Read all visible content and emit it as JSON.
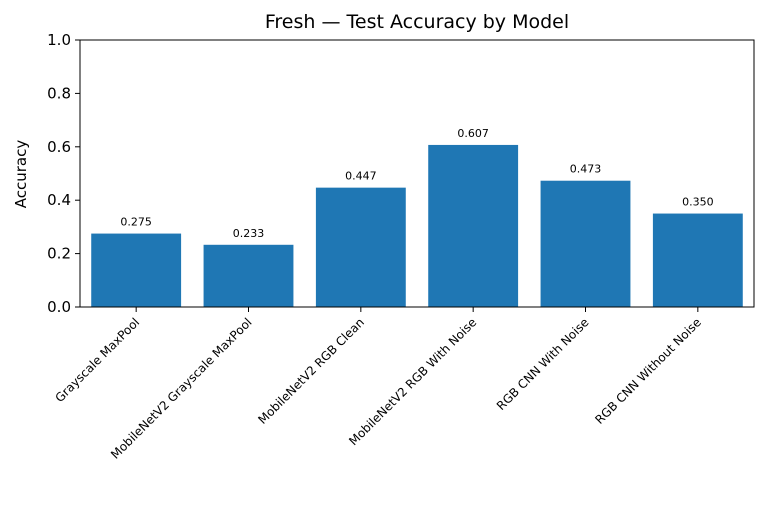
{
  "chart_data": {
    "type": "bar",
    "title": "Fresh — Test Accuracy by Model",
    "xlabel": "",
    "ylabel": "Accuracy",
    "ylim": [
      0,
      1.0
    ],
    "yticks": [
      "0.0",
      "0.2",
      "0.4",
      "0.6",
      "0.8",
      "1.0"
    ],
    "categories": [
      "Grayscale MaxPool",
      "MobileNetV2 Grayscale MaxPool",
      "MobileNetV2 RGB Clean",
      "MobileNetV2 RGB With Noise",
      "RGB CNN With Noise",
      "RGB CNN Without Noise"
    ],
    "values": [
      0.275,
      0.233,
      0.447,
      0.607,
      0.473,
      0.35
    ],
    "data_labels": [
      "0.275",
      "0.233",
      "0.447",
      "0.607",
      "0.473",
      "0.350"
    ],
    "bar_color": "#1f77b4",
    "grid": false
  }
}
